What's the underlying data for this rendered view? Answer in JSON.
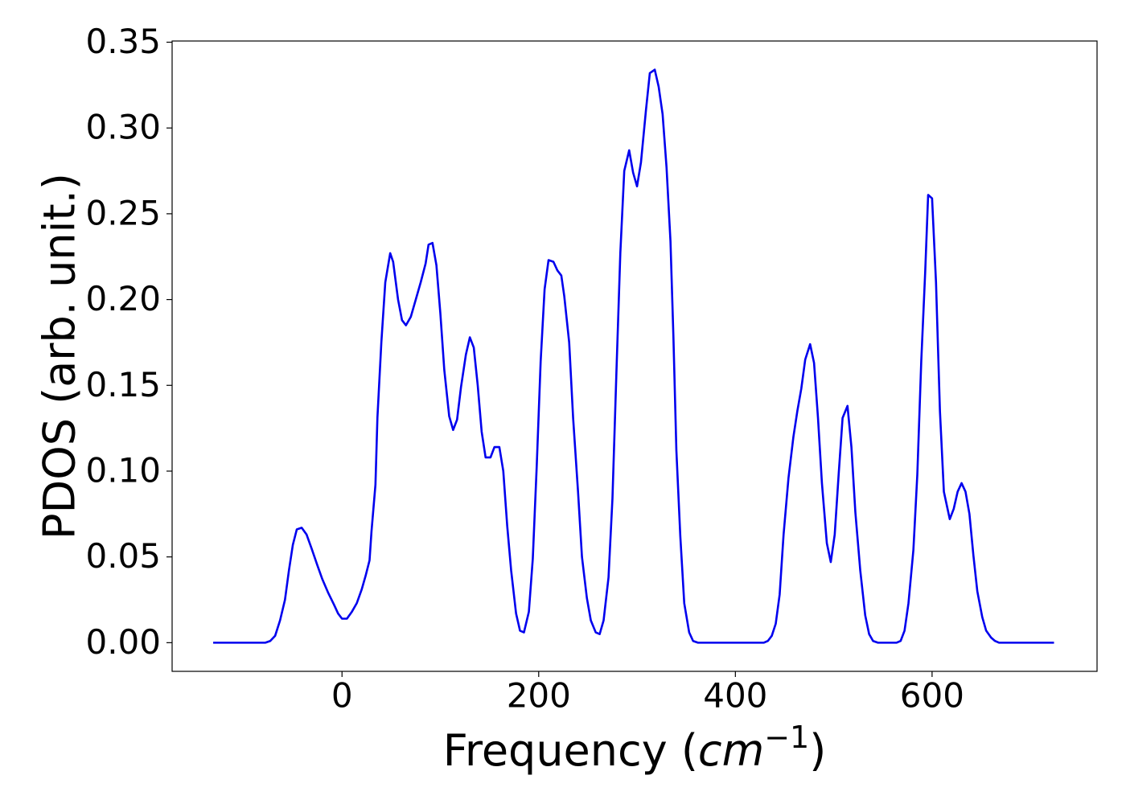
{
  "chart_data": {
    "type": "line",
    "x_label": [
      "Frequency (",
      "cm",
      "−1",
      ")"
    ],
    "y_label": "PDOS (arb. unit.)",
    "x": [
      -131,
      -78,
      -73,
      -68,
      -63,
      -58,
      -54,
      -50,
      -46,
      -41,
      -36,
      -31,
      -25,
      -20,
      -14,
      -8,
      -4,
      0,
      5,
      10,
      15,
      20,
      24,
      28,
      30,
      34,
      36,
      40,
      44,
      49,
      52,
      57,
      61,
      65,
      70,
      75,
      80,
      85,
      88,
      92,
      96,
      100,
      104,
      109,
      113,
      117,
      121,
      126,
      130,
      134,
      138,
      142,
      146,
      151,
      155,
      160,
      164,
      168,
      172,
      177,
      181,
      185,
      190,
      194,
      198,
      202,
      206,
      210,
      215,
      219,
      223,
      226,
      231,
      235,
      240,
      244,
      249,
      253,
      258,
      262,
      266,
      271,
      275,
      279,
      283,
      287,
      292,
      296,
      300,
      304,
      309,
      313,
      318,
      322,
      326,
      330,
      334,
      337,
      340,
      344,
      348,
      353,
      357,
      362,
      429,
      433,
      437,
      441,
      445,
      449,
      454,
      459,
      463,
      467,
      471,
      476,
      480,
      484,
      488,
      493,
      497,
      501,
      505,
      509,
      514,
      518,
      522,
      527,
      532,
      536,
      540,
      545,
      564,
      568,
      572,
      576,
      581,
      585,
      589,
      593,
      596,
      600,
      604,
      608,
      612,
      618,
      622,
      626,
      630,
      634,
      638,
      642,
      646,
      651,
      655,
      660,
      664,
      668,
      724
    ],
    "series": [
      {
        "color": "#0000ee",
        "values": [
          0,
          0,
          0.001,
          0.004,
          0.013,
          0.025,
          0.042,
          0.057,
          0.066,
          0.067,
          0.063,
          0.055,
          0.045,
          0.037,
          0.029,
          0.022,
          0.017,
          0.014,
          0.014,
          0.018,
          0.023,
          0.031,
          0.039,
          0.048,
          0.065,
          0.092,
          0.131,
          0.175,
          0.21,
          0.227,
          0.222,
          0.2,
          0.188,
          0.185,
          0.19,
          0.2,
          0.21,
          0.221,
          0.232,
          0.233,
          0.22,
          0.192,
          0.159,
          0.132,
          0.124,
          0.13,
          0.149,
          0.168,
          0.178,
          0.172,
          0.15,
          0.123,
          0.108,
          0.108,
          0.114,
          0.114,
          0.1,
          0.068,
          0.042,
          0.017,
          0.007,
          0.006,
          0.018,
          0.049,
          0.103,
          0.164,
          0.206,
          0.223,
          0.222,
          0.217,
          0.214,
          0.202,
          0.175,
          0.131,
          0.088,
          0.05,
          0.026,
          0.013,
          0.006,
          0.005,
          0.013,
          0.038,
          0.084,
          0.157,
          0.227,
          0.275,
          0.287,
          0.274,
          0.266,
          0.28,
          0.31,
          0.332,
          0.334,
          0.324,
          0.308,
          0.277,
          0.234,
          0.178,
          0.112,
          0.062,
          0.023,
          0.006,
          0.001,
          0,
          0,
          0.001,
          0.004,
          0.011,
          0.028,
          0.063,
          0.096,
          0.12,
          0.135,
          0.148,
          0.165,
          0.174,
          0.163,
          0.131,
          0.093,
          0.058,
          0.047,
          0.063,
          0.098,
          0.131,
          0.138,
          0.114,
          0.076,
          0.042,
          0.016,
          0.005,
          0.001,
          0,
          0,
          0.001,
          0.007,
          0.023,
          0.054,
          0.098,
          0.164,
          0.216,
          0.261,
          0.259,
          0.21,
          0.135,
          0.088,
          0.072,
          0.078,
          0.088,
          0.093,
          0.088,
          0.075,
          0.051,
          0.03,
          0.015,
          0.007,
          0.003,
          0.001,
          0,
          0
        ]
      }
    ],
    "xlim": [
      -172.75,
      767.75
    ],
    "ylim": [
      -0.0167,
      0.3507
    ],
    "xticks": [
      0,
      200,
      400,
      600
    ],
    "yticks": [
      {
        "value": 0,
        "label": "0.00"
      },
      {
        "value": 0.05,
        "label": "0.05"
      },
      {
        "value": 0.1,
        "label": "0.10"
      },
      {
        "value": 0.15,
        "label": "0.15"
      },
      {
        "value": 0.2,
        "label": "0.20"
      },
      {
        "value": 0.25,
        "label": "0.25"
      },
      {
        "value": 0.3,
        "label": "0.30"
      },
      {
        "value": 0.35,
        "label": "0.35"
      }
    ],
    "grid": false
  }
}
